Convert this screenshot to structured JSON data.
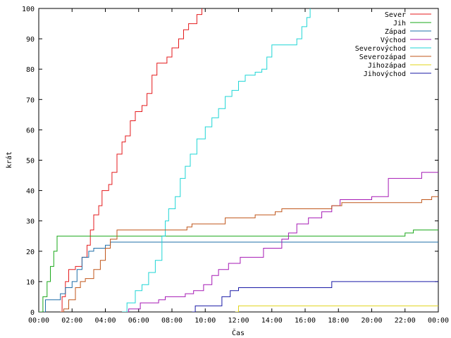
{
  "chart_data": {
    "type": "line",
    "title": "",
    "xlabel": "Čas",
    "ylabel": "krát",
    "xlim": [
      0,
      24
    ],
    "ylim": [
      0,
      100
    ],
    "x_ticks": [
      {
        "v": 0,
        "label": "00:00"
      },
      {
        "v": 2,
        "label": "02:00"
      },
      {
        "v": 4,
        "label": "04:00"
      },
      {
        "v": 6,
        "label": "06:00"
      },
      {
        "v": 8,
        "label": "08:00"
      },
      {
        "v": 10,
        "label": "10:00"
      },
      {
        "v": 12,
        "label": "12:00"
      },
      {
        "v": 14,
        "label": "14:00"
      },
      {
        "v": 16,
        "label": "16:00"
      },
      {
        "v": 18,
        "label": "18:00"
      },
      {
        "v": 20,
        "label": "20:00"
      },
      {
        "v": 22,
        "label": "22:00"
      },
      {
        "v": 24,
        "label": "00:00"
      }
    ],
    "y_ticks": [
      0,
      10,
      20,
      30,
      40,
      50,
      60,
      70,
      80,
      90,
      100
    ],
    "grid": false,
    "legend_position": "top-right",
    "series": [
      {
        "name": "Sever",
        "color": "#e41a1c",
        "points": [
          [
            1.3,
            0
          ],
          [
            1.4,
            5
          ],
          [
            1.6,
            10
          ],
          [
            1.8,
            14
          ],
          [
            2.2,
            15
          ],
          [
            2.6,
            18
          ],
          [
            2.9,
            22
          ],
          [
            3.1,
            27
          ],
          [
            3.3,
            32
          ],
          [
            3.6,
            35
          ],
          [
            3.8,
            40
          ],
          [
            4.2,
            42
          ],
          [
            4.4,
            46
          ],
          [
            4.7,
            52
          ],
          [
            5.0,
            56
          ],
          [
            5.2,
            58
          ],
          [
            5.5,
            63
          ],
          [
            5.8,
            66
          ],
          [
            6.2,
            68
          ],
          [
            6.5,
            72
          ],
          [
            6.8,
            78
          ],
          [
            7.1,
            82
          ],
          [
            7.7,
            84
          ],
          [
            8.0,
            87
          ],
          [
            8.4,
            90
          ],
          [
            8.7,
            93
          ],
          [
            9.0,
            95
          ],
          [
            9.5,
            98
          ],
          [
            9.8,
            100
          ]
        ]
      },
      {
        "name": "Jih",
        "color": "#1aa81a",
        "points": [
          [
            0,
            0
          ],
          [
            0.25,
            5
          ],
          [
            0.5,
            10
          ],
          [
            0.7,
            15
          ],
          [
            0.9,
            20
          ],
          [
            1.1,
            25
          ],
          [
            2.0,
            25
          ],
          [
            12.0,
            25
          ],
          [
            21.0,
            25
          ],
          [
            22.0,
            26
          ],
          [
            22.5,
            27
          ],
          [
            24.0,
            27
          ]
        ]
      },
      {
        "name": "Západ",
        "color": "#1f6fa8",
        "points": [
          [
            0.3,
            0
          ],
          [
            0.4,
            4
          ],
          [
            1.3,
            6
          ],
          [
            1.6,
            8
          ],
          [
            2.0,
            10
          ],
          [
            2.3,
            14
          ],
          [
            2.6,
            18
          ],
          [
            3.0,
            20
          ],
          [
            3.3,
            21
          ],
          [
            4.0,
            22
          ],
          [
            4.3,
            23
          ],
          [
            6.0,
            23
          ],
          [
            12.0,
            23
          ],
          [
            24.0,
            23
          ]
        ]
      },
      {
        "name": "Východ",
        "color": "#a61ab5",
        "points": [
          [
            5.1,
            0
          ],
          [
            5.4,
            1
          ],
          [
            6.1,
            3
          ],
          [
            7.2,
            4
          ],
          [
            7.6,
            5
          ],
          [
            8.4,
            5
          ],
          [
            8.8,
            6
          ],
          [
            9.3,
            7
          ],
          [
            9.9,
            9
          ],
          [
            10.4,
            12
          ],
          [
            10.8,
            14
          ],
          [
            11.4,
            16
          ],
          [
            12.1,
            18
          ],
          [
            13.5,
            21
          ],
          [
            14.6,
            24
          ],
          [
            15.0,
            26
          ],
          [
            15.5,
            29
          ],
          [
            16.2,
            31
          ],
          [
            17.0,
            33
          ],
          [
            17.6,
            35
          ],
          [
            18.1,
            37
          ],
          [
            20.0,
            38
          ],
          [
            21.0,
            44
          ],
          [
            23.0,
            46
          ],
          [
            24.0,
            46
          ]
        ]
      },
      {
        "name": "Severovýchod",
        "color": "#1fd6d6",
        "points": [
          [
            5.0,
            0
          ],
          [
            5.3,
            3
          ],
          [
            5.8,
            7
          ],
          [
            6.2,
            9
          ],
          [
            6.6,
            13
          ],
          [
            7.0,
            17
          ],
          [
            7.4,
            25
          ],
          [
            7.6,
            30
          ],
          [
            7.8,
            34
          ],
          [
            8.2,
            38
          ],
          [
            8.5,
            44
          ],
          [
            8.8,
            48
          ],
          [
            9.1,
            52
          ],
          [
            9.5,
            57
          ],
          [
            10.0,
            61
          ],
          [
            10.4,
            64
          ],
          [
            10.8,
            67
          ],
          [
            11.2,
            71
          ],
          [
            11.6,
            73
          ],
          [
            12.0,
            76
          ],
          [
            12.4,
            78
          ],
          [
            13.0,
            79
          ],
          [
            13.4,
            80
          ],
          [
            13.7,
            84
          ],
          [
            14.0,
            88
          ],
          [
            15.2,
            88
          ],
          [
            15.5,
            90
          ],
          [
            15.8,
            94
          ],
          [
            16.1,
            97
          ],
          [
            16.3,
            100
          ]
        ]
      },
      {
        "name": "Severozápad",
        "color": "#c0561a",
        "points": [
          [
            1.3,
            0
          ],
          [
            1.5,
            1
          ],
          [
            1.8,
            4
          ],
          [
            2.2,
            8
          ],
          [
            2.5,
            10
          ],
          [
            2.8,
            11
          ],
          [
            3.3,
            14
          ],
          [
            3.7,
            17
          ],
          [
            4.0,
            21
          ],
          [
            4.3,
            24
          ],
          [
            4.7,
            27
          ],
          [
            6.0,
            27
          ],
          [
            8.9,
            28
          ],
          [
            9.2,
            29
          ],
          [
            11.2,
            31
          ],
          [
            13.0,
            32
          ],
          [
            14.2,
            33
          ],
          [
            14.6,
            34
          ],
          [
            17.6,
            35
          ],
          [
            18.2,
            36
          ],
          [
            23.0,
            37
          ],
          [
            23.6,
            38
          ],
          [
            24.0,
            38
          ]
        ]
      },
      {
        "name": "Jihozápad",
        "color": "#e0d41a",
        "points": [
          [
            11.8,
            0
          ],
          [
            12.0,
            2
          ],
          [
            14.0,
            2
          ],
          [
            24.0,
            2
          ]
        ]
      },
      {
        "name": "Jihovýchod",
        "color": "#1a1aa6",
        "points": [
          [
            9.2,
            0
          ],
          [
            9.4,
            2
          ],
          [
            10.7,
            2
          ],
          [
            11.0,
            5
          ],
          [
            11.5,
            7
          ],
          [
            12.0,
            8
          ],
          [
            17.3,
            8
          ],
          [
            17.6,
            10
          ],
          [
            24.0,
            10
          ]
        ]
      }
    ]
  }
}
